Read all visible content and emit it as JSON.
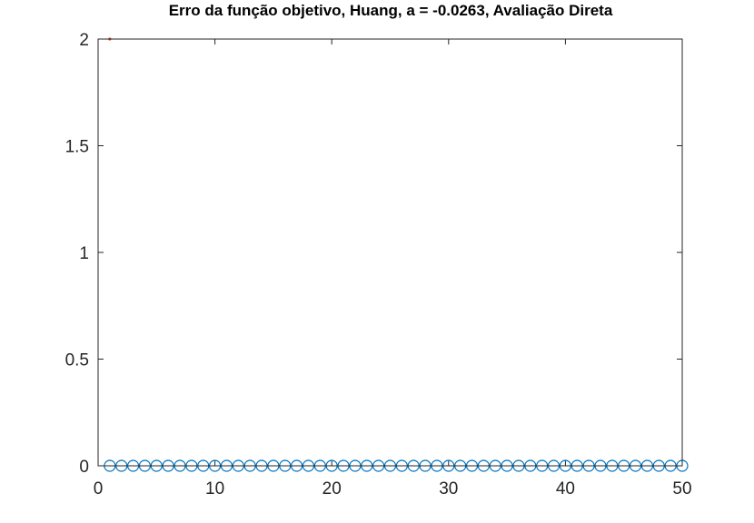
{
  "chart_data": {
    "type": "scatter",
    "title": "Erro da função objetivo, Huang, a = -0.0263, Avaliação Direta",
    "xlabel": "",
    "ylabel": "",
    "xlim": [
      0,
      50
    ],
    "ylim": [
      0,
      2
    ],
    "xticks": [
      0,
      10,
      20,
      30,
      40,
      50
    ],
    "yticks": [
      0,
      0.5,
      1,
      1.5,
      2
    ],
    "xtick_labels": [
      "0",
      "10",
      "20",
      "30",
      "40",
      "50"
    ],
    "ytick_labels": [
      "0",
      "0.5",
      "1",
      "1.5",
      "2"
    ],
    "grid": false,
    "series": [
      {
        "marker": "circle-open",
        "color": "#0072bd",
        "x": [
          1,
          2,
          3,
          4,
          5,
          6,
          7,
          8,
          9,
          10,
          11,
          12,
          13,
          14,
          15,
          16,
          17,
          18,
          19,
          20,
          21,
          22,
          23,
          24,
          25,
          26,
          27,
          28,
          29,
          30,
          31,
          32,
          33,
          34,
          35,
          36,
          37,
          38,
          39,
          40,
          41,
          42,
          43,
          44,
          45,
          46,
          47,
          48,
          49,
          50
        ],
        "y": [
          0,
          0,
          0,
          0,
          0,
          0,
          0,
          0,
          0,
          0,
          0,
          0,
          0,
          0,
          0,
          0,
          0,
          0,
          0,
          0,
          0,
          0,
          0,
          0,
          0,
          0,
          0,
          0,
          0,
          0,
          0,
          0,
          0,
          0,
          0,
          0,
          0,
          0,
          0,
          0,
          0,
          0,
          0,
          0,
          0,
          0,
          0,
          0,
          0,
          0
        ]
      },
      {
        "marker": "point",
        "color": "#d95319",
        "x": [
          1
        ],
        "y": [
          2
        ]
      }
    ]
  }
}
